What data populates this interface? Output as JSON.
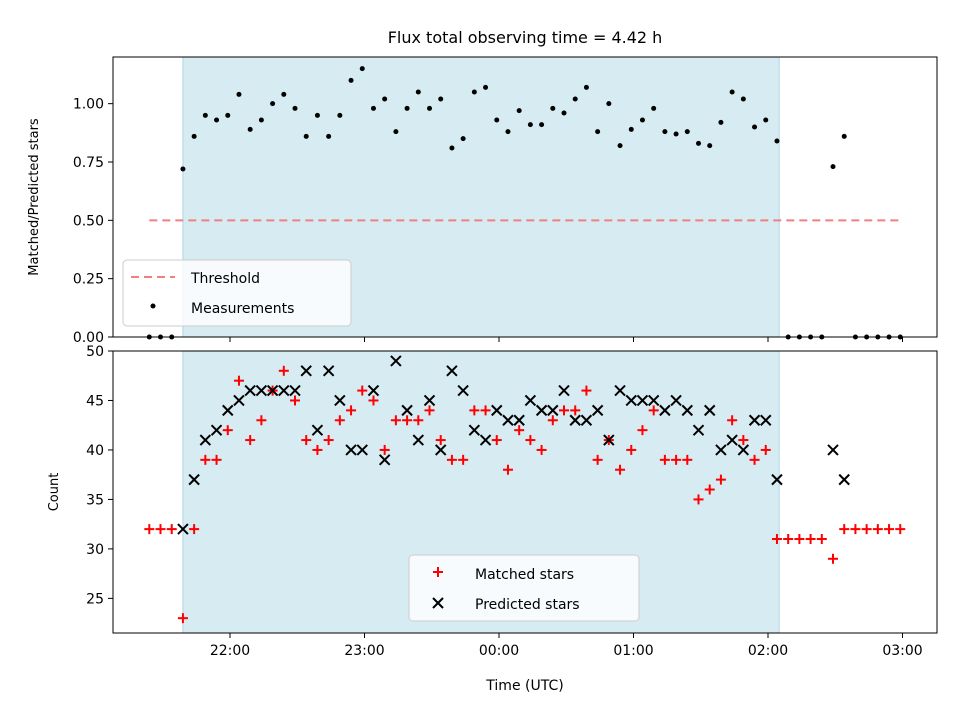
{
  "chart_data": [
    {
      "type": "scatter",
      "title": "Flux total observing time = 4.42 h",
      "ylabel": "Matched/Predicted stars",
      "xlabel": "",
      "ylim": [
        0,
        1.2
      ],
      "x_unit": "minutes from 22:00 UTC",
      "x_ticks": [
        0,
        60,
        120,
        180,
        240,
        300
      ],
      "x_tick_labels": [
        "22:00",
        "23:00",
        "00:00",
        "01:00",
        "02:00",
        "03:00"
      ],
      "y_ticks": [
        0.0,
        0.25,
        0.5,
        0.75,
        1.0
      ],
      "y_tick_labels": [
        "0.00",
        "0.25",
        "0.50",
        "0.75",
        "1.00"
      ],
      "observing_window": [
        -21,
        245
      ],
      "threshold": {
        "name": "Threshold",
        "value": 0.5,
        "x_range": [
          -36,
          300
        ],
        "color": "#f08080"
      },
      "legend": {
        "placement": "lower-left",
        "entries": [
          "Threshold",
          "Measurements"
        ]
      },
      "series": [
        {
          "name": "Measurements",
          "color": "#000000",
          "points": [
            [
              -36,
              0
            ],
            [
              -31,
              0
            ],
            [
              -26,
              0
            ],
            [
              -21,
              0.72
            ],
            [
              -16,
              0.86
            ],
            [
              -11,
              0.95
            ],
            [
              -6,
              0.93
            ],
            [
              -1,
              0.95
            ],
            [
              4,
              1.04
            ],
            [
              9,
              0.89
            ],
            [
              14,
              0.93
            ],
            [
              19,
              1.0
            ],
            [
              24,
              1.04
            ],
            [
              29,
              0.98
            ],
            [
              34,
              0.86
            ],
            [
              39,
              0.95
            ],
            [
              44,
              0.86
            ],
            [
              49,
              0.95
            ],
            [
              54,
              1.1
            ],
            [
              59,
              1.15
            ],
            [
              64,
              0.98
            ],
            [
              69,
              1.02
            ],
            [
              74,
              0.88
            ],
            [
              79,
              0.98
            ],
            [
              84,
              1.05
            ],
            [
              89,
              0.98
            ],
            [
              94,
              1.02
            ],
            [
              99,
              0.81
            ],
            [
              104,
              0.85
            ],
            [
              109,
              1.05
            ],
            [
              114,
              1.07
            ],
            [
              119,
              0.93
            ],
            [
              124,
              0.88
            ],
            [
              129,
              0.97
            ],
            [
              134,
              0.91
            ],
            [
              139,
              0.91
            ],
            [
              144,
              0.98
            ],
            [
              149,
              0.96
            ],
            [
              154,
              1.02
            ],
            [
              159,
              1.07
            ],
            [
              164,
              0.88
            ],
            [
              169,
              1.0
            ],
            [
              174,
              0.82
            ],
            [
              179,
              0.89
            ],
            [
              184,
              0.93
            ],
            [
              189,
              0.98
            ],
            [
              194,
              0.88
            ],
            [
              199,
              0.87
            ],
            [
              204,
              0.88
            ],
            [
              209,
              0.83
            ],
            [
              214,
              0.82
            ],
            [
              219,
              0.92
            ],
            [
              224,
              1.05
            ],
            [
              229,
              1.02
            ],
            [
              234,
              0.9
            ],
            [
              239,
              0.93
            ],
            [
              244,
              0.84
            ],
            [
              249,
              0
            ],
            [
              254,
              0
            ],
            [
              259,
              0
            ],
            [
              264,
              0
            ],
            [
              269,
              0.73
            ],
            [
              274,
              0.86
            ],
            [
              279,
              0
            ],
            [
              284,
              0
            ],
            [
              289,
              0
            ],
            [
              294,
              0
            ],
            [
              299,
              0
            ]
          ]
        }
      ]
    },
    {
      "type": "scatter",
      "title": "",
      "ylabel": "Count",
      "xlabel": "Time (UTC)",
      "ylim": [
        21.5,
        50
      ],
      "x_unit": "minutes from 22:00 UTC",
      "x_ticks": [
        0,
        60,
        120,
        180,
        240,
        300
      ],
      "x_tick_labels": [
        "22:00",
        "23:00",
        "00:00",
        "01:00",
        "02:00",
        "03:00"
      ],
      "y_ticks": [
        25,
        30,
        35,
        40,
        45,
        50
      ],
      "y_tick_labels": [
        "25",
        "30",
        "35",
        "40",
        "45",
        "50"
      ],
      "observing_window": [
        -21,
        245
      ],
      "legend": {
        "placement": "lower-center",
        "entries": [
          "Matched stars",
          "Predicted stars"
        ]
      },
      "series": [
        {
          "name": "Matched stars",
          "marker": "plus",
          "color": "#ff0000",
          "points": [
            [
              -36,
              32
            ],
            [
              -31,
              32
            ],
            [
              -26,
              32
            ],
            [
              -21,
              23
            ],
            [
              -16,
              32
            ],
            [
              -11,
              39
            ],
            [
              -6,
              39
            ],
            [
              -1,
              42
            ],
            [
              4,
              47
            ],
            [
              9,
              41
            ],
            [
              14,
              43
            ],
            [
              19,
              46
            ],
            [
              24,
              48
            ],
            [
              29,
              45
            ],
            [
              34,
              41
            ],
            [
              39,
              40
            ],
            [
              44,
              41
            ],
            [
              49,
              43
            ],
            [
              54,
              44
            ],
            [
              59,
              46
            ],
            [
              64,
              45
            ],
            [
              69,
              40
            ],
            [
              74,
              43
            ],
            [
              79,
              43
            ],
            [
              84,
              43
            ],
            [
              89,
              44
            ],
            [
              94,
              41
            ],
            [
              99,
              39
            ],
            [
              104,
              39
            ],
            [
              109,
              44
            ],
            [
              114,
              44
            ],
            [
              119,
              41
            ],
            [
              124,
              38
            ],
            [
              129,
              42
            ],
            [
              134,
              41
            ],
            [
              139,
              40
            ],
            [
              144,
              43
            ],
            [
              149,
              44
            ],
            [
              154,
              44
            ],
            [
              159,
              46
            ],
            [
              164,
              39
            ],
            [
              169,
              41
            ],
            [
              174,
              38
            ],
            [
              179,
              40
            ],
            [
              184,
              42
            ],
            [
              189,
              44
            ],
            [
              194,
              39
            ],
            [
              199,
              39
            ],
            [
              204,
              39
            ],
            [
              209,
              35
            ],
            [
              214,
              36
            ],
            [
              219,
              37
            ],
            [
              224,
              43
            ],
            [
              229,
              41
            ],
            [
              234,
              39
            ],
            [
              239,
              40
            ],
            [
              244,
              31
            ],
            [
              249,
              31
            ],
            [
              254,
              31
            ],
            [
              259,
              31
            ],
            [
              264,
              31
            ],
            [
              269,
              29
            ],
            [
              274,
              32
            ],
            [
              279,
              32
            ],
            [
              284,
              32
            ],
            [
              289,
              32
            ],
            [
              294,
              32
            ],
            [
              299,
              32
            ]
          ]
        },
        {
          "name": "Predicted stars",
          "marker": "x",
          "color": "#000000",
          "points": [
            [
              -21,
              32
            ],
            [
              -16,
              37
            ],
            [
              -11,
              41
            ],
            [
              -6,
              42
            ],
            [
              -1,
              44
            ],
            [
              4,
              45
            ],
            [
              9,
              46
            ],
            [
              14,
              46
            ],
            [
              19,
              46
            ],
            [
              24,
              46
            ],
            [
              29,
              46
            ],
            [
              34,
              48
            ],
            [
              39,
              42
            ],
            [
              44,
              48
            ],
            [
              49,
              45
            ],
            [
              54,
              40
            ],
            [
              59,
              40
            ],
            [
              64,
              46
            ],
            [
              69,
              39
            ],
            [
              74,
              49
            ],
            [
              79,
              44
            ],
            [
              84,
              41
            ],
            [
              89,
              45
            ],
            [
              94,
              40
            ],
            [
              99,
              48
            ],
            [
              104,
              46
            ],
            [
              109,
              42
            ],
            [
              114,
              41
            ],
            [
              119,
              44
            ],
            [
              124,
              43
            ],
            [
              129,
              43
            ],
            [
              134,
              45
            ],
            [
              139,
              44
            ],
            [
              144,
              44
            ],
            [
              149,
              46
            ],
            [
              154,
              43
            ],
            [
              159,
              43
            ],
            [
              164,
              44
            ],
            [
              169,
              41
            ],
            [
              174,
              46
            ],
            [
              179,
              45
            ],
            [
              184,
              45
            ],
            [
              189,
              45
            ],
            [
              194,
              44
            ],
            [
              199,
              45
            ],
            [
              204,
              44
            ],
            [
              209,
              42
            ],
            [
              214,
              44
            ],
            [
              219,
              40
            ],
            [
              224,
              41
            ],
            [
              229,
              40
            ],
            [
              234,
              43
            ],
            [
              239,
              43
            ],
            [
              244,
              37
            ],
            [
              269,
              40
            ],
            [
              274,
              37
            ]
          ]
        }
      ]
    }
  ]
}
